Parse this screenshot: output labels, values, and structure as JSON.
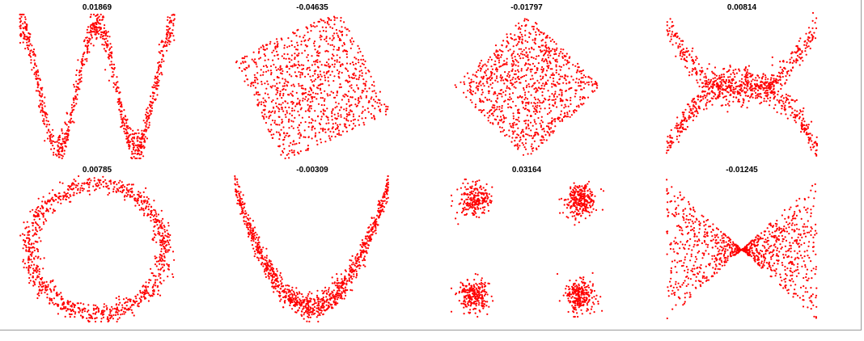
{
  "point_color": "#ff0000",
  "chart_data": [
    {
      "type": "scatter",
      "title": "0.01869",
      "shape": "w-curve",
      "n_points": 900,
      "xlim": [
        -1,
        1
      ],
      "ylim": [
        -1,
        1
      ]
    },
    {
      "type": "scatter",
      "title": "-0.04635",
      "shape": "rotated-square",
      "n_points": 1000,
      "xlim": [
        -1,
        1
      ],
      "ylim": [
        -1,
        1
      ]
    },
    {
      "type": "scatter",
      "title": "-0.01797",
      "shape": "diamond",
      "n_points": 1000,
      "xlim": [
        -1,
        1
      ],
      "ylim": [
        -1,
        1
      ]
    },
    {
      "type": "scatter",
      "title": "0.00814",
      "shape": "x-parabolas",
      "n_points": 1000,
      "xlim": [
        -1,
        1
      ],
      "ylim": [
        -1,
        1
      ]
    },
    {
      "type": "scatter",
      "title": "0.00785",
      "shape": "ring",
      "n_points": 1000,
      "xlim": [
        -1,
        1
      ],
      "ylim": [
        -1,
        1
      ]
    },
    {
      "type": "scatter",
      "title": "-0.00309",
      "shape": "parabola",
      "n_points": 1000,
      "xlim": [
        -1,
        1
      ],
      "ylim": [
        -1,
        1
      ]
    },
    {
      "type": "scatter",
      "title": "0.03164",
      "shape": "four-clusters",
      "n_points": 1000,
      "xlim": [
        -1,
        1
      ],
      "ylim": [
        -1,
        1
      ]
    },
    {
      "type": "scatter",
      "title": "-0.01245",
      "shape": "bowtie",
      "n_points": 1000,
      "xlim": [
        -1,
        1
      ],
      "ylim": [
        -1,
        1
      ]
    }
  ]
}
